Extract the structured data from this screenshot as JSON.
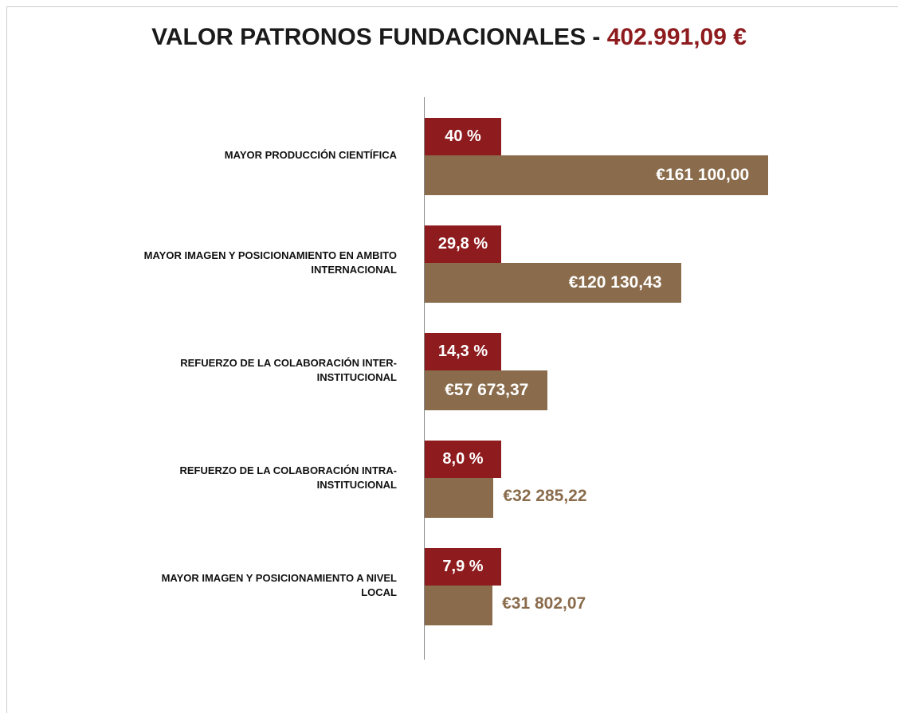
{
  "chart_data": {
    "type": "bar",
    "orientation": "horizontal",
    "title": "VALOR PATRONOS FUNDACIONALES -",
    "total": "402.991,09 €",
    "categories": [
      "MAYOR PRODUCCIÓN CIENTÍFICA",
      "MAYOR IMAGEN Y POSICIONAMIENTO EN AMBITO INTERNACIONAL",
      "REFUERZO DE LA COLABORACIÓN INTER-INSTITUCIONAL",
      "REFUERZO DE LA COLABORACIÓN INTRA-INSTITUCIONAL",
      "MAYOR IMAGEN Y POSICIONAMIENTO A NIVEL LOCAL"
    ],
    "percent": {
      "color": "#8e1b1e",
      "values": [
        40,
        29.8,
        14.3,
        8.0,
        7.9
      ],
      "value_labels": [
        "40 %",
        "29,8 %",
        "14,3 %",
        "8,0 %",
        "7,9 %"
      ]
    },
    "series": [
      {
        "color": "#8a6c4c",
        "values": [
          161100.0,
          120130.43,
          57673.37,
          32285.22,
          31802.07
        ],
        "value_labels": [
          "€161 100,00",
          "€120 130,43",
          "€57 673,37",
          "€32 285,22",
          "€31 802,07"
        ]
      }
    ],
    "xlim": [
      0,
      170000
    ]
  }
}
